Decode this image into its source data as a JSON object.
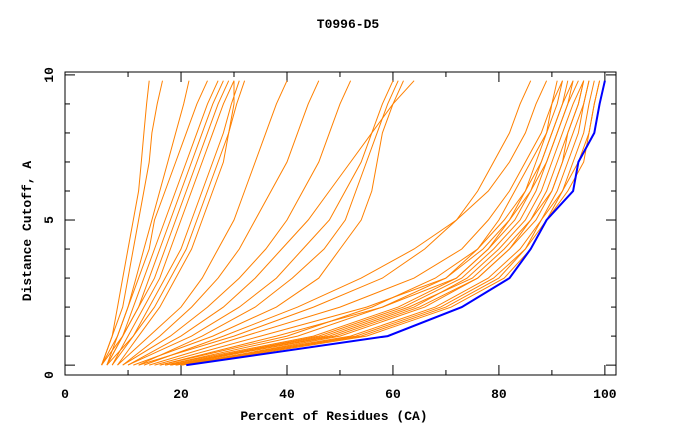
{
  "chart_data": {
    "type": "line",
    "title": "T0996-D5",
    "xlabel": "Percent of Residues (CA)",
    "ylabel": "Distance Cutoff, A",
    "xlim": [
      -1.9,
      102.1
    ],
    "ylim": [
      -0.34,
      10.1
    ],
    "x_ticks": [
      "0",
      "20",
      "40",
      "60",
      "80",
      "100"
    ],
    "x_tick_values": [
      0,
      20,
      40,
      60,
      80,
      100
    ],
    "x_minor_step": 10,
    "y_ticks": [
      "0",
      "5",
      "10"
    ],
    "y_tick_values": [
      0,
      5,
      10
    ],
    "y_minor_step": 1,
    "grid": false,
    "colors": {
      "models": "#ff8000",
      "highlight": "#0000ff",
      "axes": "#000000"
    },
    "cutoffs": [
      0,
      1,
      2,
      3,
      4,
      5,
      6,
      7,
      8,
      9,
      9.8
    ],
    "highlight_series": [
      21,
      59,
      73,
      82,
      86,
      89,
      94,
      95,
      98,
      99,
      100
    ],
    "series": [
      [
        5,
        7,
        8,
        9,
        10,
        11,
        12,
        12.5,
        13,
        13.5,
        14
      ],
      [
        5,
        7,
        9,
        10,
        11,
        12,
        13,
        14,
        14.5,
        15.5,
        16.5
      ],
      [
        5,
        8,
        10,
        11.5,
        13,
        14.5,
        16,
        17.5,
        19,
        20.5,
        21.5
      ],
      [
        6,
        8,
        10,
        12,
        14,
        15,
        17,
        19,
        21,
        23,
        25
      ],
      [
        6,
        9,
        11,
        13,
        15,
        17,
        19,
        21,
        23,
        25,
        27
      ],
      [
        5,
        9,
        12,
        14,
        16,
        18,
        20,
        22,
        24,
        26,
        28
      ],
      [
        6,
        9,
        12,
        15,
        17,
        19,
        21,
        23,
        25,
        27,
        29
      ],
      [
        7,
        10,
        13,
        16,
        18,
        20,
        22,
        24,
        26,
        28,
        30
      ],
      [
        7,
        11,
        14,
        17,
        20,
        22,
        24,
        26,
        28,
        29.5,
        31
      ],
      [
        6,
        11,
        15,
        18,
        21,
        23,
        25,
        27,
        29,
        30.5,
        32
      ],
      [
        8,
        12,
        16,
        19,
        22,
        24,
        26,
        28,
        29,
        30,
        30
      ],
      [
        8,
        14,
        20,
        24,
        27,
        30,
        32,
        34,
        36,
        38,
        40
      ],
      [
        9,
        16,
        22,
        27,
        31,
        34,
        37,
        40,
        42,
        44,
        46
      ],
      [
        9,
        18,
        25,
        31,
        36,
        40,
        43,
        46,
        48,
        50,
        52
      ],
      [
        10,
        20,
        28,
        34,
        39,
        44,
        48,
        52,
        56,
        60,
        64
      ],
      [
        10,
        22,
        31,
        38,
        43,
        48,
        51,
        54,
        56,
        58,
        60
      ],
      [
        12,
        24,
        34,
        41,
        47,
        51,
        53,
        55,
        57,
        59,
        61
      ],
      [
        11,
        26,
        38,
        46,
        50,
        54,
        56,
        57,
        58,
        60,
        62
      ],
      [
        12,
        30,
        45,
        58,
        66,
        72,
        76,
        79,
        82,
        84,
        86
      ],
      [
        14,
        32,
        50,
        64,
        73,
        78,
        82,
        85,
        88,
        90,
        91
      ],
      [
        15,
        35,
        55,
        70,
        76,
        80,
        83,
        86,
        89,
        90,
        92
      ],
      [
        13,
        28,
        42,
        54,
        64,
        72,
        78,
        82,
        85,
        87,
        89
      ],
      [
        16,
        38,
        58,
        72,
        78,
        82,
        85,
        87,
        89,
        91,
        92
      ],
      [
        20,
        50,
        66,
        76,
        82,
        86,
        89,
        91,
        93,
        95,
        96
      ],
      [
        19,
        48,
        64,
        74,
        80,
        85,
        88,
        90,
        92,
        94,
        96
      ],
      [
        18,
        46,
        62,
        73,
        79,
        84,
        87,
        89,
        91,
        93,
        95
      ],
      [
        17,
        45,
        61,
        72,
        78,
        83,
        86,
        88,
        90,
        92,
        94
      ],
      [
        18,
        47,
        63,
        75,
        81,
        86,
        90,
        92,
        94,
        96,
        97
      ],
      [
        19,
        52,
        68,
        78,
        84,
        88,
        91,
        93,
        95,
        96,
        97
      ],
      [
        20,
        54,
        70,
        80,
        85,
        88,
        92,
        94,
        96,
        97,
        98
      ],
      [
        21,
        55,
        71,
        81,
        86,
        89,
        92,
        95,
        97,
        98,
        99
      ],
      [
        17,
        42,
        58,
        70,
        77,
        82,
        86,
        89,
        91,
        93,
        94
      ],
      [
        16,
        40,
        56,
        68,
        76,
        81,
        85,
        88,
        90,
        92,
        93
      ],
      [
        20,
        53,
        69,
        79,
        85,
        89,
        93,
        96,
        97,
        98,
        99
      ],
      [
        18,
        49,
        65,
        76,
        82,
        87,
        90,
        92,
        93,
        95,
        96
      ]
    ]
  }
}
